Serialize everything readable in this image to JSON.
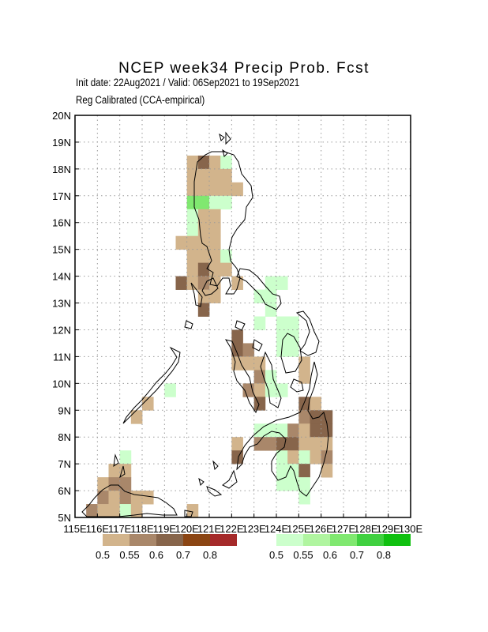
{
  "title": "NCEP  week34  Precip  Prob.  Fcst",
  "subtitle_1": "Init date: 22Aug2021 / Valid: 06Sep2021 to 19Sep2021",
  "subtitle_2": "Reg Calibrated (CCA-empirical)",
  "lat_labels": [
    "20N",
    "19N",
    "18N",
    "17N",
    "16N",
    "15N",
    "14N",
    "13N",
    "12N",
    "11N",
    "10N",
    "9N",
    "8N",
    "7N",
    "6N",
    "5N"
  ],
  "lon_labels": [
    "115E",
    "116E",
    "117E",
    "118E",
    "119E",
    "120E",
    "121E",
    "122E",
    "123E",
    "124E",
    "125E",
    "126E",
    "127E",
    "128E",
    "129E",
    "130E"
  ],
  "legend": {
    "dry": {
      "colors": [
        "#d2b48c",
        "#a9876a",
        "#87654b",
        "#8b4513",
        "#a52a2a"
      ],
      "labels": [
        "0.5",
        "0.55",
        "0.6",
        "0.7",
        "0.8"
      ]
    },
    "wet": {
      "colors": [
        "#ccffcc",
        "#b0f5a0",
        "#80e870",
        "#40d040",
        "#10c010"
      ],
      "labels": [
        "0.5",
        "0.55",
        "0.6",
        "0.7",
        "0.8"
      ]
    }
  },
  "grid_cells": [
    {
      "lat": 18,
      "lon": 120,
      "cat": "b1"
    },
    {
      "lat": 18,
      "lon": 120.5,
      "cat": "b3"
    },
    {
      "lat": 18,
      "lon": 121,
      "cat": "b1"
    },
    {
      "lat": 18,
      "lon": 121.5,
      "cat": "g1"
    },
    {
      "lat": 17.5,
      "lon": 120,
      "cat": "b1"
    },
    {
      "lat": 17.5,
      "lon": 120.5,
      "cat": "b1"
    },
    {
      "lat": 17.5,
      "lon": 121,
      "cat": "b1"
    },
    {
      "lat": 17.5,
      "lon": 121.5,
      "cat": "b1"
    },
    {
      "lat": 17,
      "lon": 120,
      "cat": "b1"
    },
    {
      "lat": 17,
      "lon": 120.5,
      "cat": "b1"
    },
    {
      "lat": 17,
      "lon": 121,
      "cat": "b1"
    },
    {
      "lat": 17,
      "lon": 121.5,
      "cat": "b1"
    },
    {
      "lat": 17,
      "lon": 122,
      "cat": "b1"
    },
    {
      "lat": 16.5,
      "lon": 120,
      "cat": "g3"
    },
    {
      "lat": 16.5,
      "lon": 120.5,
      "cat": "g3"
    },
    {
      "lat": 16.5,
      "lon": 121,
      "cat": "g1"
    },
    {
      "lat": 16.5,
      "lon": 121.5,
      "cat": "g1"
    },
    {
      "lat": 16,
      "lon": 120,
      "cat": "g1"
    },
    {
      "lat": 16,
      "lon": 120.5,
      "cat": "b1"
    },
    {
      "lat": 16,
      "lon": 121,
      "cat": "b1"
    },
    {
      "lat": 15.5,
      "lon": 120,
      "cat": "g1"
    },
    {
      "lat": 15.5,
      "lon": 120.5,
      "cat": "b1"
    },
    {
      "lat": 15.5,
      "lon": 121,
      "cat": "b1"
    },
    {
      "lat": 15,
      "lon": 119.5,
      "cat": "b1"
    },
    {
      "lat": 15,
      "lon": 120,
      "cat": "b1"
    },
    {
      "lat": 15,
      "lon": 120.5,
      "cat": "b1"
    },
    {
      "lat": 15,
      "lon": 121,
      "cat": "b1"
    },
    {
      "lat": 14.5,
      "lon": 120,
      "cat": "b1"
    },
    {
      "lat": 14.5,
      "lon": 120.5,
      "cat": "b1"
    },
    {
      "lat": 14.5,
      "lon": 121,
      "cat": "b1"
    },
    {
      "lat": 14.5,
      "lon": 121.5,
      "cat": "g1"
    },
    {
      "lat": 14,
      "lon": 120,
      "cat": "b1"
    },
    {
      "lat": 14,
      "lon": 120.5,
      "cat": "b3"
    },
    {
      "lat": 14,
      "lon": 121,
      "cat": "b1"
    },
    {
      "lat": 14,
      "lon": 121.5,
      "cat": "b1"
    },
    {
      "lat": 13.5,
      "lon": 119.5,
      "cat": "b3"
    },
    {
      "lat": 13.5,
      "lon": 120,
      "cat": "b1"
    },
    {
      "lat": 13.5,
      "lon": 120.5,
      "cat": "b2"
    },
    {
      "lat": 13.5,
      "lon": 121,
      "cat": "b1"
    },
    {
      "lat": 13.5,
      "lon": 122,
      "cat": "b1"
    },
    {
      "lat": 13.5,
      "lon": 123.5,
      "cat": "g1"
    },
    {
      "lat": 13.5,
      "lon": 124,
      "cat": "g1"
    },
    {
      "lat": 13,
      "lon": 120.5,
      "cat": "b1"
    },
    {
      "lat": 13,
      "lon": 121,
      "cat": "b1"
    },
    {
      "lat": 13,
      "lon": 123,
      "cat": "g1"
    },
    {
      "lat": 13,
      "lon": 123.5,
      "cat": "g1"
    },
    {
      "lat": 12.5,
      "lon": 120.5,
      "cat": "b3"
    },
    {
      "lat": 12.5,
      "lon": 123.5,
      "cat": "g1"
    },
    {
      "lat": 12,
      "lon": 123,
      "cat": "g1"
    },
    {
      "lat": 12,
      "lon": 124,
      "cat": "g1"
    },
    {
      "lat": 12,
      "lon": 124.5,
      "cat": "g1"
    },
    {
      "lat": 11.5,
      "lon": 122,
      "cat": "b3"
    },
    {
      "lat": 11.5,
      "lon": 124,
      "cat": "g1"
    },
    {
      "lat": 11.5,
      "lon": 124.5,
      "cat": "g1"
    },
    {
      "lat": 11,
      "lon": 122,
      "cat": "b3"
    },
    {
      "lat": 11,
      "lon": 122.5,
      "cat": "b2"
    },
    {
      "lat": 11,
      "lon": 124,
      "cat": "g1"
    },
    {
      "lat": 11,
      "lon": 124.5,
      "cat": "g1"
    },
    {
      "lat": 10.5,
      "lon": 122,
      "cat": "b1"
    },
    {
      "lat": 10.5,
      "lon": 122.5,
      "cat": "b1"
    },
    {
      "lat": 10.5,
      "lon": 123,
      "cat": "b1"
    },
    {
      "lat": 10.5,
      "lon": 125,
      "cat": "b1"
    },
    {
      "lat": 10,
      "lon": 123,
      "cat": "b2"
    },
    {
      "lat": 10,
      "lon": 123.5,
      "cat": "g1"
    },
    {
      "lat": 10,
      "lon": 125,
      "cat": "b1"
    },
    {
      "lat": 9.5,
      "lon": 119,
      "cat": "g1"
    },
    {
      "lat": 9.5,
      "lon": 122.5,
      "cat": "b2"
    },
    {
      "lat": 9.5,
      "lon": 123,
      "cat": "b1"
    },
    {
      "lat": 9.5,
      "lon": 123.5,
      "cat": "g1"
    },
    {
      "lat": 9.5,
      "lon": 124,
      "cat": "g1"
    },
    {
      "lat": 9,
      "lon": 118,
      "cat": "b1"
    },
    {
      "lat": 9,
      "lon": 123,
      "cat": "b3"
    },
    {
      "lat": 9,
      "lon": 125,
      "cat": "b3"
    },
    {
      "lat": 9,
      "lon": 125.5,
      "cat": "b1"
    },
    {
      "lat": 8.5,
      "lon": 117.5,
      "cat": "b1"
    },
    {
      "lat": 8.5,
      "lon": 125,
      "cat": "b2"
    },
    {
      "lat": 8.5,
      "lon": 125.5,
      "cat": "b3"
    },
    {
      "lat": 8.5,
      "lon": 126,
      "cat": "b3"
    },
    {
      "lat": 8,
      "lon": 123,
      "cat": "g1"
    },
    {
      "lat": 8,
      "lon": 123.5,
      "cat": "g1"
    },
    {
      "lat": 8,
      "lon": 124,
      "cat": "g1"
    },
    {
      "lat": 8,
      "lon": 124.5,
      "cat": "b2"
    },
    {
      "lat": 8,
      "lon": 125,
      "cat": "b1"
    },
    {
      "lat": 8,
      "lon": 125.5,
      "cat": "b3"
    },
    {
      "lat": 8,
      "lon": 126,
      "cat": "b3"
    },
    {
      "lat": 7.5,
      "lon": 122,
      "cat": "b1"
    },
    {
      "lat": 7.5,
      "lon": 123,
      "cat": "b2"
    },
    {
      "lat": 7.5,
      "lon": 123.5,
      "cat": "b2"
    },
    {
      "lat": 7.5,
      "lon": 124,
      "cat": "b3"
    },
    {
      "lat": 7.5,
      "lon": 124.5,
      "cat": "b3"
    },
    {
      "lat": 7.5,
      "lon": 125,
      "cat": "b1"
    },
    {
      "lat": 7.5,
      "lon": 125.5,
      "cat": "b1"
    },
    {
      "lat": 7.5,
      "lon": 126,
      "cat": "b1"
    },
    {
      "lat": 7,
      "lon": 117,
      "cat": "g1"
    },
    {
      "lat": 7,
      "lon": 122,
      "cat": "b3"
    },
    {
      "lat": 7,
      "lon": 124,
      "cat": "g1"
    },
    {
      "lat": 7,
      "lon": 124.5,
      "cat": "b1"
    },
    {
      "lat": 7,
      "lon": 125,
      "cat": "g1"
    },
    {
      "lat": 7,
      "lon": 125.5,
      "cat": "b1"
    },
    {
      "lat": 7,
      "lon": 126,
      "cat": "b2"
    },
    {
      "lat": 6.5,
      "lon": 116.5,
      "cat": "b1"
    },
    {
      "lat": 6.5,
      "lon": 117,
      "cat": "b1"
    },
    {
      "lat": 6.5,
      "lon": 124,
      "cat": "g1"
    },
    {
      "lat": 6.5,
      "lon": 124.5,
      "cat": "g1"
    },
    {
      "lat": 6.5,
      "lon": 125,
      "cat": "b3"
    },
    {
      "lat": 6.5,
      "lon": 126,
      "cat": "b1"
    },
    {
      "lat": 6,
      "lon": 116,
      "cat": "b1"
    },
    {
      "lat": 6,
      "lon": 116.5,
      "cat": "b2"
    },
    {
      "lat": 6,
      "lon": 117,
      "cat": "b2"
    },
    {
      "lat": 6,
      "lon": 124,
      "cat": "g1"
    },
    {
      "lat": 6,
      "lon": 124.5,
      "cat": "g1"
    },
    {
      "lat": 6,
      "lon": 125,
      "cat": "g1"
    },
    {
      "lat": 5.5,
      "lon": 116,
      "cat": "b2"
    },
    {
      "lat": 5.5,
      "lon": 116.5,
      "cat": "b1"
    },
    {
      "lat": 5.5,
      "lon": 117,
      "cat": "b2"
    },
    {
      "lat": 5.5,
      "lon": 117.5,
      "cat": "b1"
    },
    {
      "lat": 5.5,
      "lon": 118,
      "cat": "b1"
    },
    {
      "lat": 5.5,
      "lon": 125,
      "cat": "g1"
    },
    {
      "lat": 5,
      "lon": 115.5,
      "cat": "b2"
    },
    {
      "lat": 5,
      "lon": 116,
      "cat": "b1"
    },
    {
      "lat": 5,
      "lon": 116.5,
      "cat": "b1"
    },
    {
      "lat": 5,
      "lon": 117,
      "cat": "g1"
    },
    {
      "lat": 5,
      "lon": 117.5,
      "cat": "b1"
    },
    {
      "lat": 5,
      "lon": 120,
      "cat": "b1"
    }
  ],
  "category_colors": {
    "b1": "#d2b48c",
    "b2": "#a9876a",
    "b3": "#87654b",
    "g1": "#ccffcc",
    "g3": "#80e870"
  }
}
